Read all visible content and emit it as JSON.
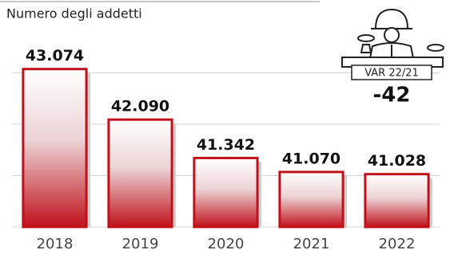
{
  "chart_data": {
    "type": "bar",
    "title": "Numero degli addetti",
    "categories": [
      "2018",
      "2019",
      "2020",
      "2021",
      "2022"
    ],
    "values": [
      43074,
      42090,
      41342,
      41070,
      41028
    ],
    "value_labels": [
      "43.074",
      "42.090",
      "41.342",
      "41.070",
      "41.028"
    ],
    "color": "#c0111a",
    "ylim": [
      40000,
      44000
    ],
    "yticks": [
      40000,
      41000,
      42000,
      43000
    ],
    "grid": true,
    "annotation": {
      "label": "VAR 22/21",
      "value": -42
    }
  }
}
